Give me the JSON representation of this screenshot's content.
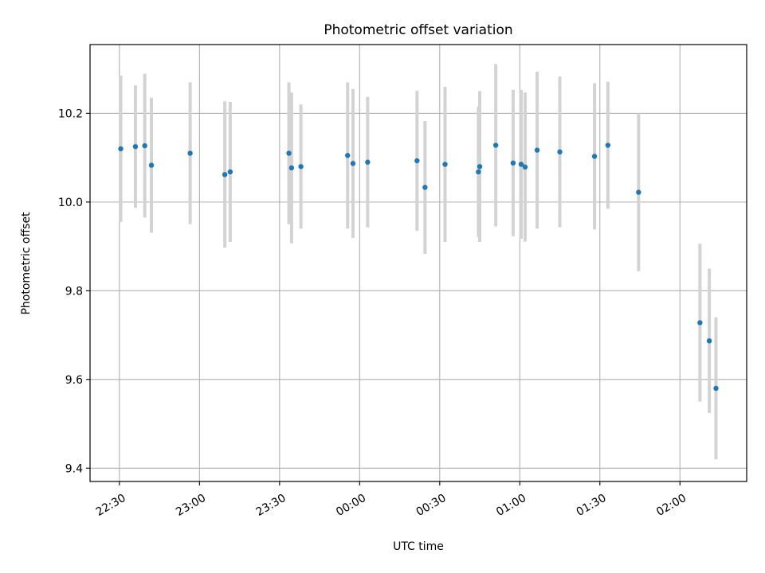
{
  "chart_data": {
    "type": "scatter",
    "title": "Photometric offset variation",
    "xlabel": "UTC time",
    "ylabel": "Photometric offset",
    "xlim": [
      "22:19",
      "02:25"
    ],
    "ylim": [
      9.37,
      10.355
    ],
    "x_ticks": [
      {
        "label": "22:30",
        "value": "22:30"
      },
      {
        "label": "23:00",
        "value": "23:00"
      },
      {
        "label": "23:30",
        "value": "23:30"
      },
      {
        "label": "00:00",
        "value": "00:00"
      },
      {
        "label": "00:30",
        "value": "00:30"
      },
      {
        "label": "01:00",
        "value": "01:00"
      },
      {
        "label": "01:30",
        "value": "01:30"
      },
      {
        "label": "02:00",
        "value": "02:00"
      }
    ],
    "y_ticks": [
      9.4,
      9.6,
      9.8,
      10.0,
      10.2
    ],
    "grid": true,
    "point_color": "#1f77b4",
    "errorbar_color": "#d3d3d3",
    "points": [
      {
        "time": "22:30:30",
        "y": 10.12,
        "yerr": 0.165
      },
      {
        "time": "22:36:00",
        "y": 10.125,
        "yerr": 0.138
      },
      {
        "time": "22:39:30",
        "y": 10.127,
        "yerr": 0.162
      },
      {
        "time": "22:42:00",
        "y": 10.083,
        "yerr": 0.152
      },
      {
        "time": "22:56:30",
        "y": 10.11,
        "yerr": 0.16
      },
      {
        "time": "23:09:30",
        "y": 10.062,
        "yerr": 0.165
      },
      {
        "time": "23:11:30",
        "y": 10.068,
        "yerr": 0.158
      },
      {
        "time": "23:33:30",
        "y": 10.11,
        "yerr": 0.16
      },
      {
        "time": "23:34:30",
        "y": 10.077,
        "yerr": 0.17
      },
      {
        "time": "23:38:00",
        "y": 10.08,
        "yerr": 0.14
      },
      {
        "time": "23:55:30",
        "y": 10.105,
        "yerr": 0.165
      },
      {
        "time": "23:57:30",
        "y": 10.087,
        "yerr": 0.168
      },
      {
        "time": "00:03:00",
        "y": 10.09,
        "yerr": 0.147
      },
      {
        "time": "00:21:30",
        "y": 10.093,
        "yerr": 0.158
      },
      {
        "time": "00:24:30",
        "y": 10.033,
        "yerr": 0.15
      },
      {
        "time": "00:32:00",
        "y": 10.085,
        "yerr": 0.175
      },
      {
        "time": "00:44:30",
        "y": 10.068,
        "yerr": 0.147
      },
      {
        "time": "00:45:00",
        "y": 10.08,
        "yerr": 0.17
      },
      {
        "time": "00:51:00",
        "y": 10.128,
        "yerr": 0.183
      },
      {
        "time": "00:57:30",
        "y": 10.088,
        "yerr": 0.165
      },
      {
        "time": "01:00:30",
        "y": 10.085,
        "yerr": 0.168
      },
      {
        "time": "01:02:00",
        "y": 10.079,
        "yerr": 0.168
      },
      {
        "time": "01:06:30",
        "y": 10.117,
        "yerr": 0.177
      },
      {
        "time": "01:15:00",
        "y": 10.113,
        "yerr": 0.17
      },
      {
        "time": "01:28:00",
        "y": 10.103,
        "yerr": 0.165
      },
      {
        "time": "01:33:00",
        "y": 10.128,
        "yerr": 0.143
      },
      {
        "time": "01:44:30",
        "y": 10.022,
        "yerr": 0.178
      },
      {
        "time": "02:07:30",
        "y": 9.728,
        "yerr": 0.178
      },
      {
        "time": "02:11:00",
        "y": 9.687,
        "yerr": 0.163
      },
      {
        "time": "02:13:30",
        "y": 9.58,
        "yerr": 0.16
      }
    ]
  }
}
